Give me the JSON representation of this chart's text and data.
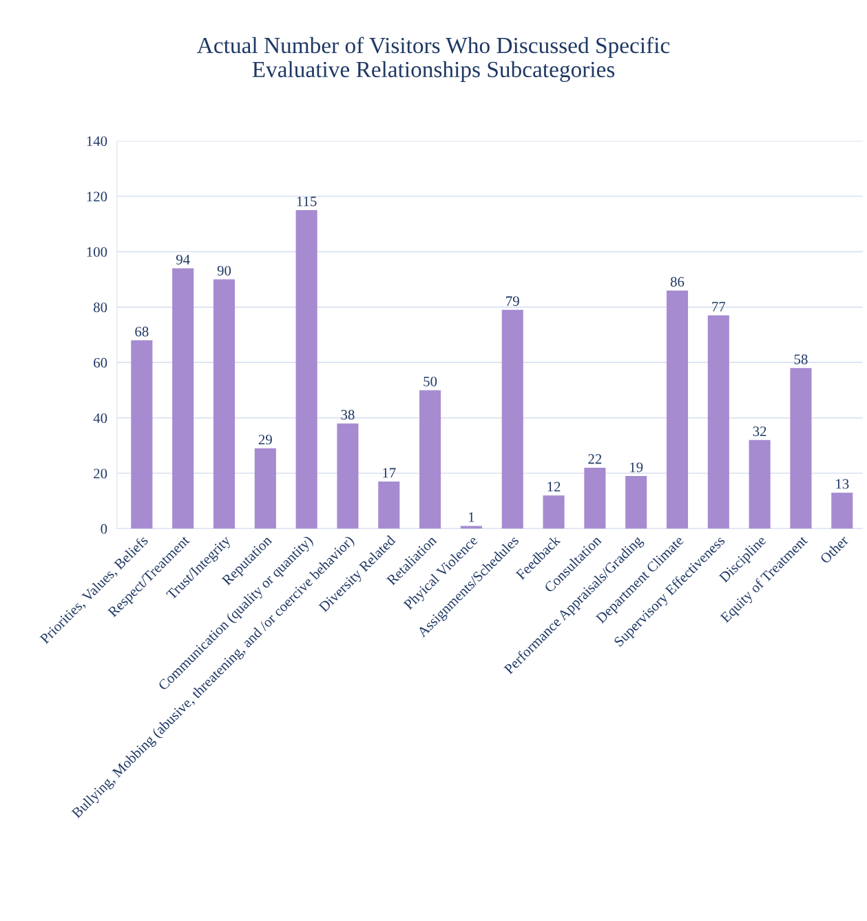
{
  "chart_data": {
    "type": "bar",
    "title": "Actual Number of Visitors Who Discussed Specific\nEvaluative Relationships Subcategories",
    "categories": [
      "Priorities, Values, Beliefs",
      "Respect/Treatment",
      "Trust/Integrity",
      "Reputation",
      "Communication (quality or quantity)",
      "Bullying, Mobbing (abusive, threatening, and /or coercive behavior)",
      "Diversity Related",
      "Retaliation",
      "Phyical Violence",
      "Assignments/Schedules",
      "Feedback",
      "Consultation",
      "Performance Appraisals/Grading",
      "Department Climate",
      "Supervisory Effectiveness",
      "Discipline",
      "Equity of Treatment",
      "Other"
    ],
    "values": [
      68,
      94,
      90,
      29,
      115,
      38,
      17,
      50,
      1,
      79,
      12,
      22,
      19,
      86,
      77,
      32,
      58,
      13
    ],
    "color": "#a68bd1",
    "ylim": [
      0,
      140
    ],
    "yticks": [
      0,
      20,
      40,
      60,
      80,
      100,
      120,
      140
    ],
    "grid": "y",
    "data_labels": true
  }
}
